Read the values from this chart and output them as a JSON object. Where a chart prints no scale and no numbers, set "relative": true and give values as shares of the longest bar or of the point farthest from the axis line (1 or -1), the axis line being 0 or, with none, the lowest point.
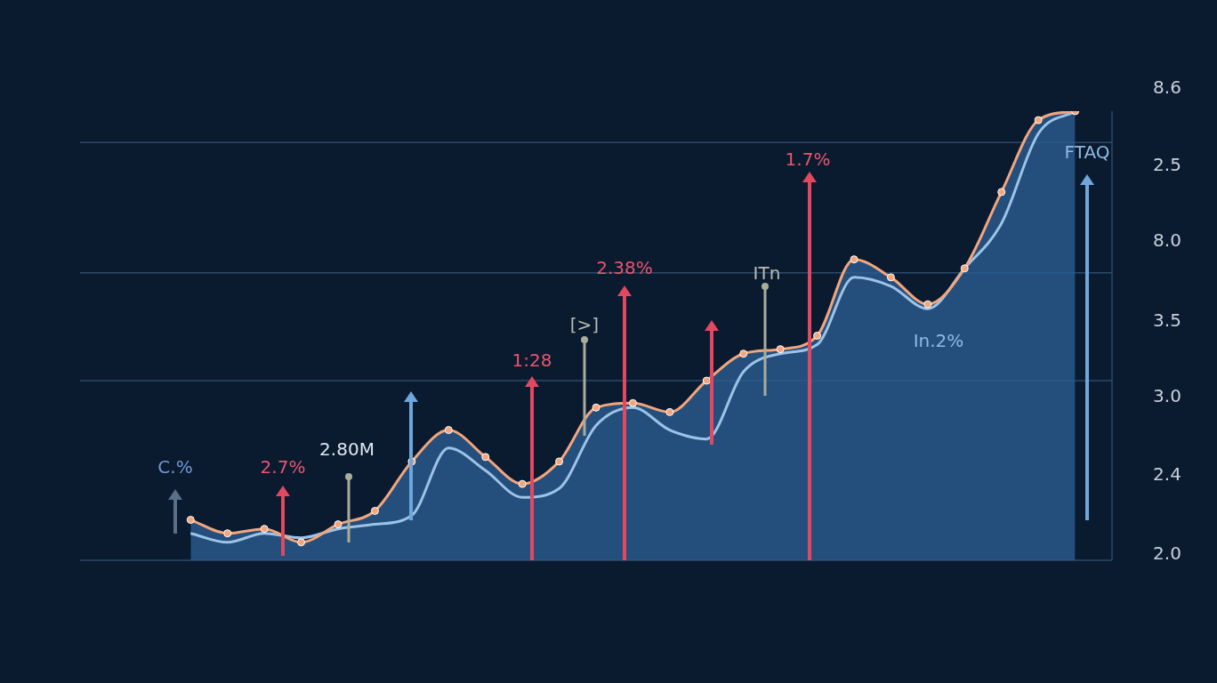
{
  "chart_data": {
    "type": "line",
    "relative": true,
    "categories": [
      null,
      null,
      null,
      null,
      null,
      null,
      null,
      null,
      null,
      null,
      null,
      null,
      null,
      null,
      null,
      null,
      null,
      null,
      null,
      null,
      null,
      null,
      null,
      null,
      null,
      null,
      null,
      null,
      null
    ],
    "series": [
      {
        "type": "area",
        "color": "#2a5d90",
        "values": [
          null,
          null,
          null,
          0.09,
          0.06,
          0.07,
          0.04,
          0.08,
          0.11,
          0.22,
          0.29,
          0.23,
          0.17,
          0.22,
          0.34,
          0.35,
          0.33,
          0.4,
          0.46,
          0.47,
          0.5,
          0.67,
          0.63,
          0.57,
          0.65,
          0.82,
          0.98,
          1,
          null
        ]
      },
      {
        "color": "#9cc3e8",
        "marker": "none",
        "values": [
          null,
          null,
          null,
          0.06,
          0.04,
          0.06,
          0.05,
          0.07,
          0.08,
          0.1,
          0.25,
          0.2,
          0.14,
          0.16,
          0.3,
          0.34,
          0.29,
          0.27,
          0.42,
          0.46,
          0.48,
          0.63,
          0.61,
          0.56,
          0.65,
          0.75,
          0.95,
          1,
          null
        ]
      },
      {
        "color": "#f3a57c",
        "marker": "circle",
        "values": [
          null,
          null,
          null,
          0.09,
          0.06,
          0.07,
          0.04,
          0.08,
          0.11,
          0.22,
          0.29,
          0.23,
          0.17,
          0.22,
          0.34,
          0.35,
          0.33,
          0.4,
          0.46,
          0.47,
          0.5,
          0.67,
          0.63,
          0.57,
          0.65,
          0.82,
          0.98,
          1,
          null
        ]
      }
    ],
    "tick_labels": false,
    "legend": false,
    "ref_lines": [
      {
        "axis": "y",
        "value": 0.93,
        "color": "#2c4a68"
      },
      {
        "axis": "y",
        "value": 0.64,
        "color": "#2c4a68"
      },
      {
        "axis": "y",
        "value": 0.4,
        "color": "#2c4a68"
      }
    ],
    "annotations": [
      "C.%",
      "2.7%",
      "2.80M",
      "1:28",
      "[>]",
      "2.38%",
      "ITn",
      "1.7%",
      "In.2%",
      "FTAQ",
      "8.6",
      "2.5",
      "8.0",
      "3.5",
      "3.0",
      "2.4",
      "2.0"
    ]
  }
}
